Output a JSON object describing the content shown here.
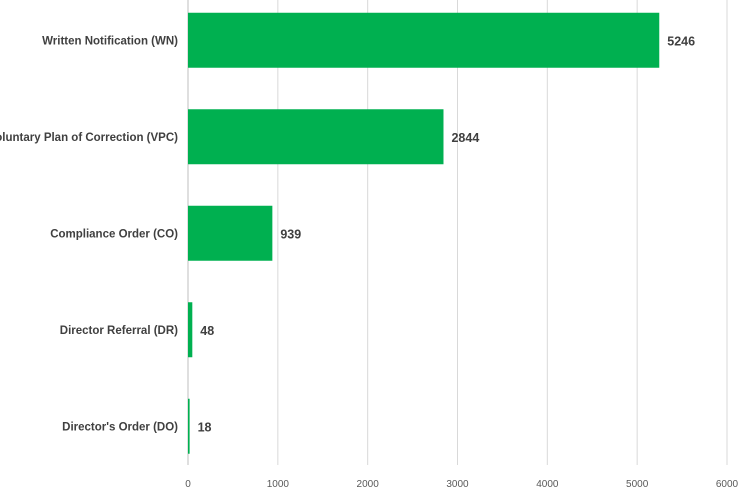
{
  "chart_data": {
    "type": "bar",
    "orientation": "horizontal",
    "title": "",
    "xlabel": "",
    "ylabel": "",
    "categories": [
      "Written Notification (WN)",
      "Voluntary Plan of Correction (VPC)",
      "Compliance Order (CO)",
      "Director Referral (DR)",
      "Director's Order (DO)"
    ],
    "values": [
      5246,
      2844,
      939,
      48,
      18
    ],
    "xlim": [
      0,
      6000
    ],
    "x_ticks": [
      "0",
      "1000",
      "2000",
      "3000",
      "4000",
      "5000",
      "6000"
    ],
    "grid": "vertical",
    "legend": "none",
    "bar_color": "#00b050",
    "data_labels": [
      "5246",
      "2844",
      "939",
      "48",
      "18"
    ]
  }
}
